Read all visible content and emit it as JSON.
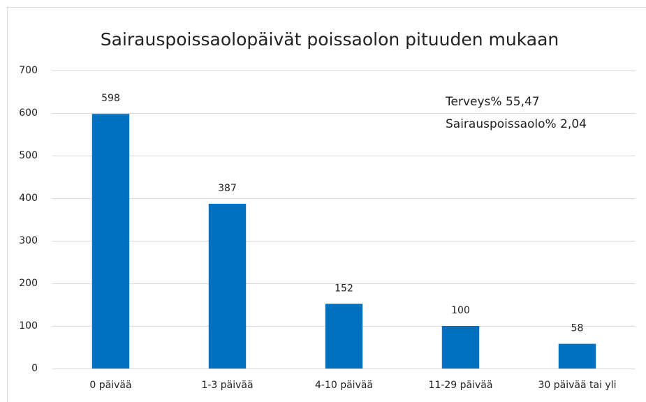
{
  "chart_data": {
    "type": "bar",
    "title": "Sairauspoissaolopäivät poissaolon pituuden mukaan",
    "categories": [
      "0 päivää",
      "1-3 päivää",
      "4-10 päivää",
      "11-29 päivää",
      "30 päivää tai yli"
    ],
    "values": [
      598,
      387,
      152,
      100,
      58
    ],
    "color": "#0070c0",
    "ylim": [
      0,
      700
    ],
    "yticks": [
      0,
      100,
      200,
      300,
      400,
      500,
      600,
      700
    ],
    "grid": true,
    "annotations": [
      "Terveys% 55,47",
      "Sairauspoissaolo% 2,04"
    ]
  }
}
